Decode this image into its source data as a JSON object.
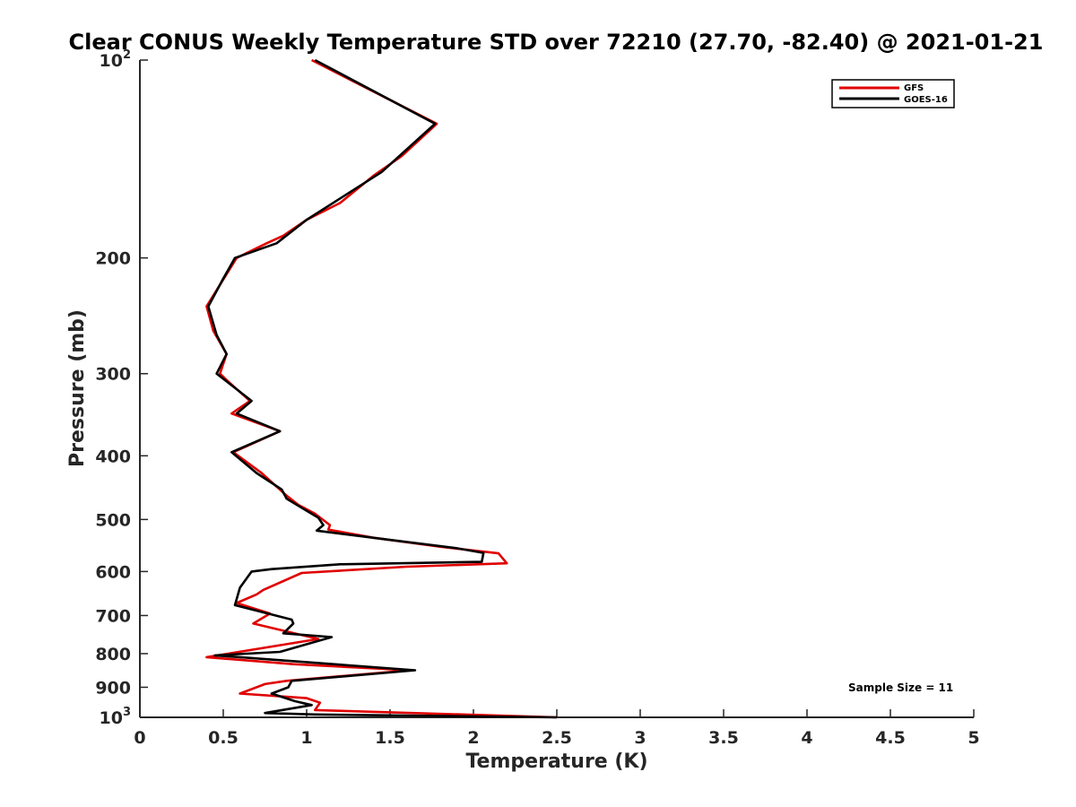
{
  "chart_data": {
    "type": "line",
    "title": "Clear CONUS Weekly Temperature STD over 72210 (27.70, -82.40) @ 2021-01-21",
    "xlabel": "Temperature (K)",
    "ylabel": "Pressure (mb)",
    "xlim": [
      0,
      5
    ],
    "ylim": [
      1000,
      100
    ],
    "yscale": "log",
    "y_reversed": true,
    "x_ticks": [
      "0",
      "0.5",
      "1",
      "1.5",
      "2",
      "2.5",
      "3",
      "3.5",
      "4",
      "4.5",
      "5"
    ],
    "x_tick_values": [
      0,
      0.5,
      1,
      1.5,
      2,
      2.5,
      3,
      3.5,
      4,
      4.5,
      5
    ],
    "y_ticks": [
      {
        "value": 100,
        "base": "10",
        "exp": "2"
      },
      {
        "value": 200,
        "label": "200"
      },
      {
        "value": 300,
        "label": "300"
      },
      {
        "value": 400,
        "label": "400"
      },
      {
        "value": 500,
        "label": "500"
      },
      {
        "value": 600,
        "label": "600"
      },
      {
        "value": 700,
        "label": "700"
      },
      {
        "value": 800,
        "label": "800"
      },
      {
        "value": 900,
        "label": "900"
      },
      {
        "value": 1000,
        "base": "10",
        "exp": "3"
      }
    ],
    "grid": false,
    "legend_position": "top-right",
    "annotation": "Sample Size = 11",
    "series": [
      {
        "name": "GFS",
        "color": "#e00000",
        "points": [
          [
            1.03,
            100
          ],
          [
            1.78,
            125
          ],
          [
            1.57,
            140
          ],
          [
            1.4,
            150
          ],
          [
            1.2,
            165
          ],
          [
            1.0,
            175
          ],
          [
            0.86,
            185
          ],
          [
            0.76,
            190
          ],
          [
            0.58,
            200
          ],
          [
            0.4,
            237
          ],
          [
            0.44,
            258
          ],
          [
            0.52,
            280
          ],
          [
            0.48,
            300
          ],
          [
            0.54,
            310
          ],
          [
            0.66,
            330
          ],
          [
            0.55,
            345
          ],
          [
            0.84,
            367
          ],
          [
            0.56,
            395
          ],
          [
            0.73,
            425
          ],
          [
            0.88,
            460
          ],
          [
            0.95,
            475
          ],
          [
            1.05,
            490
          ],
          [
            1.14,
            510
          ],
          [
            1.13,
            518
          ],
          [
            1.4,
            533
          ],
          [
            1.8,
            550
          ],
          [
            2.15,
            563
          ],
          [
            2.2,
            583
          ],
          [
            1.6,
            590
          ],
          [
            0.97,
            603
          ],
          [
            0.74,
            640
          ],
          [
            0.7,
            650
          ],
          [
            0.58,
            670
          ],
          [
            0.78,
            695
          ],
          [
            0.68,
            720
          ],
          [
            1.07,
            760
          ],
          [
            0.4,
            810
          ],
          [
            0.92,
            830
          ],
          [
            1.62,
            848
          ],
          [
            0.88,
            880
          ],
          [
            0.75,
            890
          ],
          [
            0.6,
            920
          ],
          [
            1.0,
            935
          ],
          [
            1.08,
            950
          ],
          [
            1.05,
            975
          ],
          [
            2.5,
            1000
          ]
        ]
      },
      {
        "name": "GOES-16",
        "color": "#000000",
        "points": [
          [
            1.05,
            100
          ],
          [
            1.77,
            125
          ],
          [
            1.45,
            148
          ],
          [
            1.0,
            175
          ],
          [
            0.82,
            190
          ],
          [
            0.57,
            200
          ],
          [
            0.5,
            215
          ],
          [
            0.41,
            237
          ],
          [
            0.46,
            262
          ],
          [
            0.52,
            280
          ],
          [
            0.46,
            300
          ],
          [
            0.67,
            330
          ],
          [
            0.58,
            345
          ],
          [
            0.84,
            367
          ],
          [
            0.55,
            395
          ],
          [
            0.7,
            425
          ],
          [
            0.85,
            450
          ],
          [
            0.88,
            465
          ],
          [
            0.97,
            480
          ],
          [
            1.07,
            497
          ],
          [
            1.1,
            510
          ],
          [
            1.06,
            520
          ],
          [
            1.45,
            535
          ],
          [
            1.9,
            553
          ],
          [
            2.06,
            562
          ],
          [
            2.05,
            580
          ],
          [
            1.2,
            585
          ],
          [
            0.79,
            595
          ],
          [
            0.67,
            600
          ],
          [
            0.6,
            635
          ],
          [
            0.57,
            675
          ],
          [
            0.91,
            710
          ],
          [
            0.92,
            720
          ],
          [
            0.86,
            745
          ],
          [
            1.15,
            755
          ],
          [
            0.84,
            795
          ],
          [
            0.45,
            805
          ],
          [
            1.65,
            848
          ],
          [
            0.91,
            880
          ],
          [
            0.89,
            900
          ],
          [
            0.79,
            920
          ],
          [
            0.93,
            945
          ],
          [
            1.03,
            958
          ],
          [
            0.75,
            985
          ],
          [
            1.05,
            990
          ],
          [
            2.5,
            1000
          ]
        ]
      }
    ]
  }
}
